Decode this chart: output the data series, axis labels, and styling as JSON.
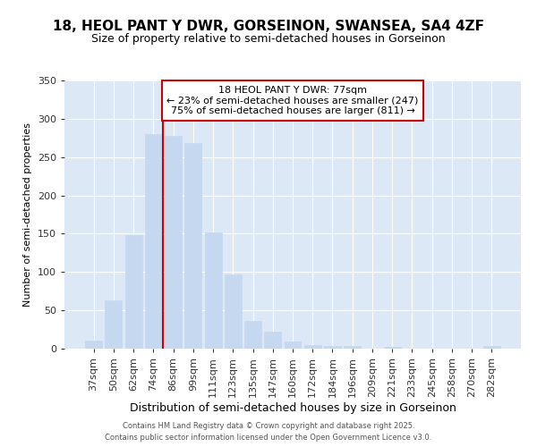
{
  "title1": "18, HEOL PANT Y DWR, GORSEINON, SWANSEA, SA4 4ZF",
  "title2": "Size of property relative to semi-detached houses in Gorseinon",
  "xlabel": "Distribution of semi-detached houses by size in Gorseinon",
  "ylabel": "Number of semi-detached properties",
  "categories": [
    "37sqm",
    "50sqm",
    "62sqm",
    "74sqm",
    "86sqm",
    "99sqm",
    "111sqm",
    "123sqm",
    "135sqm",
    "147sqm",
    "160sqm",
    "172sqm",
    "184sqm",
    "196sqm",
    "209sqm",
    "221sqm",
    "233sqm",
    "245sqm",
    "258sqm",
    "270sqm",
    "282sqm"
  ],
  "values": [
    10,
    63,
    148,
    280,
    278,
    268,
    152,
    97,
    36,
    22,
    9,
    5,
    3,
    3,
    0,
    2,
    0,
    0,
    0,
    0,
    3
  ],
  "bar_color": "#c5d8f0",
  "bar_edge_color": "#c5d8f0",
  "vline_color": "#cc0000",
  "vline_x": 3.5,
  "annotation_title": "18 HEOL PANT Y DWR: 77sqm",
  "annotation_line1": "← 23% of semi-detached houses are smaller (247)",
  "annotation_line2": "75% of semi-detached houses are larger (811) →",
  "annotation_box_edgecolor": "#cc0000",
  "background_color": "#dce8f5",
  "plot_bg_color": "#dce8f5",
  "ylim": [
    0,
    350
  ],
  "yticks": [
    0,
    50,
    100,
    150,
    200,
    250,
    300,
    350
  ],
  "footer1": "Contains HM Land Registry data © Crown copyright and database right 2025.",
  "footer2": "Contains public sector information licensed under the Open Government Licence v3.0.",
  "title1_fontsize": 11,
  "title2_fontsize": 9,
  "xlabel_fontsize": 9,
  "ylabel_fontsize": 8,
  "tick_fontsize": 8,
  "ann_fontsize": 8
}
